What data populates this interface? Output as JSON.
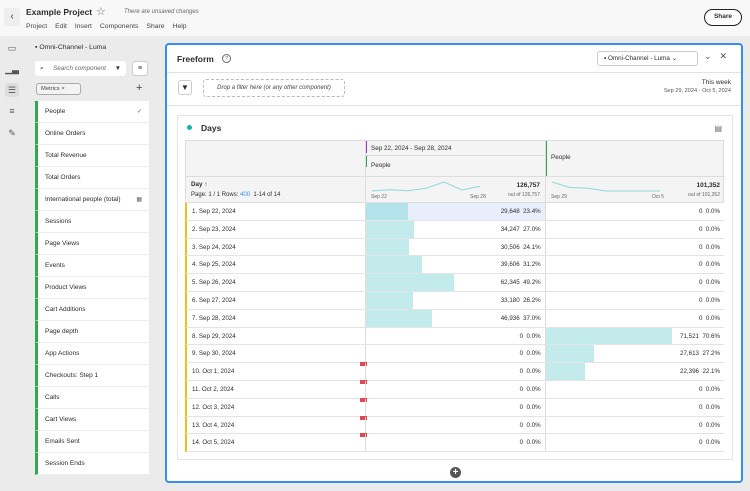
{
  "header": {
    "back": "‹",
    "title": "Example Project",
    "star": "☆",
    "unsaved": "There are unsaved changes",
    "menu": [
      "Project",
      "Edit",
      "Insert",
      "Components",
      "Share",
      "Help"
    ],
    "share": "Share"
  },
  "sidebar": {
    "data_source": "Omni-Channel - Luma",
    "search_placeholder": "Search component",
    "filter_chip": "Metrics",
    "items": [
      "People",
      "Online Orders",
      "Total Revenue",
      "Total Orders",
      "International people (total)",
      "Sessions",
      "Page Views",
      "Events",
      "Product Views",
      "Cart Additions",
      "Page depth",
      "App Actions",
      "Checkouts: Step 1",
      "Calls",
      "Cart Views",
      "Emails Sent",
      "Session Ends"
    ],
    "checked": "✓"
  },
  "panel": {
    "title": "Freeform",
    "data_source": "Omni-Channel - Luma",
    "filter_drop": "Drop a filter here (or any other component)",
    "date_label": "This week",
    "date_range": "Sep 29, 2024 - Oct 5, 2024"
  },
  "table": {
    "title": "Days",
    "dimension": "Day",
    "pagination": "Page: 1 / 1 Rows:",
    "rows_count": "400",
    "range": "1-14 of 14",
    "col1": {
      "segment": "Sep 22, 2024 - Sep 28, 2024",
      "metric": "People",
      "total": "126,757",
      "out_of": "out of 126,757",
      "spark_start": "Sep 22",
      "spark_end": "Sep 28",
      "color": "#a432c8"
    },
    "col2": {
      "metric": "People",
      "total": "101,352",
      "out_of": "out of 101,352",
      "spark_start": "Sep 29",
      "spark_end": "Oct 5"
    },
    "rows": [
      {
        "label": "1.  Sep 22, 2024",
        "v1": "29,648",
        "p1": "23.4%",
        "v2": "0",
        "p2": "0.0%",
        "n1": 23.4,
        "n2": 0
      },
      {
        "label": "2.  Sep 23, 2024",
        "v1": "34,247",
        "p1": "27.0%",
        "v2": "0",
        "p2": "0.0%",
        "n1": 27.0,
        "n2": 0
      },
      {
        "label": "3.  Sep 24, 2024",
        "v1": "30,506",
        "p1": "24.1%",
        "v2": "0",
        "p2": "0.0%",
        "n1": 24.1,
        "n2": 0
      },
      {
        "label": "4.  Sep 25, 2024",
        "v1": "39,606",
        "p1": "31.2%",
        "v2": "0",
        "p2": "0.0%",
        "n1": 31.2,
        "n2": 0
      },
      {
        "label": "5.  Sep 26, 2024",
        "v1": "62,345",
        "p1": "49.2%",
        "v2": "0",
        "p2": "0.0%",
        "n1": 49.2,
        "n2": 0
      },
      {
        "label": "6.  Sep 27, 2024",
        "v1": "33,180",
        "p1": "26.2%",
        "v2": "0",
        "p2": "0.0%",
        "n1": 26.2,
        "n2": 0
      },
      {
        "label": "7.  Sep 28, 2024",
        "v1": "46,936",
        "p1": "37.0%",
        "v2": "0",
        "p2": "0.0%",
        "n1": 37.0,
        "n2": 0
      },
      {
        "label": "8.  Sep 29, 2024",
        "v1": "0",
        "p1": "0.0%",
        "v2": "71,521",
        "p2": "70.6%",
        "n1": 0,
        "n2": 70.6
      },
      {
        "label": "9.  Sep 30, 2024",
        "v1": "0",
        "p1": "0.0%",
        "v2": "27,613",
        "p2": "27.2%",
        "n1": 0,
        "n2": 27.2
      },
      {
        "label": "10.  Oct 1, 2024",
        "v1": "0",
        "p1": "0.0%",
        "v2": "22,396",
        "p2": "22.1%",
        "n1": 0,
        "n2": 22.1,
        "flag": true
      },
      {
        "label": "11.  Oct 2, 2024",
        "v1": "0",
        "p1": "0.0%",
        "v2": "0",
        "p2": "0.0%",
        "n1": 0,
        "n2": 0,
        "flag": true
      },
      {
        "label": "12.  Oct 3, 2024",
        "v1": "0",
        "p1": "0.0%",
        "v2": "0",
        "p2": "0.0%",
        "n1": 0,
        "n2": 0,
        "flag": true
      },
      {
        "label": "13.  Oct 4, 2024",
        "v1": "0",
        "p1": "0.0%",
        "v2": "0",
        "p2": "0.0%",
        "n1": 0,
        "n2": 0,
        "flag": true
      },
      {
        "label": "14.  Oct 5, 2024",
        "v1": "0",
        "p1": "0.0%",
        "v2": "0",
        "p2": "0.0%",
        "n1": 0,
        "n2": 0,
        "flag": true
      }
    ]
  },
  "colors": {
    "accent": "#378ef0",
    "metric_bar": "#2fa84f",
    "bar": "#c3ebec",
    "row_marker": "#e8c21a"
  }
}
